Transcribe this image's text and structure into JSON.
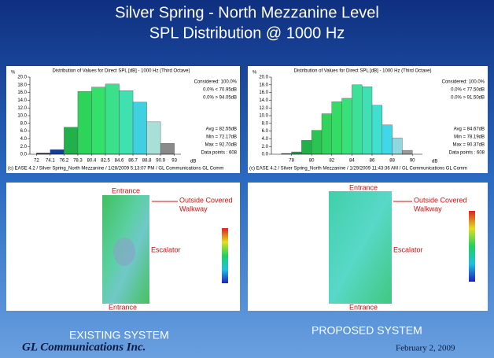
{
  "slide": {
    "title": [
      "Silver Spring - North Mezzanine Level",
      "SPL  Distribution @ 1000 Hz"
    ]
  },
  "chart_data": [
    {
      "type": "histogram",
      "title": "Distribution of Values for Direct SPL [dB] - 1000 Hz (Third Octave)",
      "y_label": "%",
      "x_label": "dB",
      "bins": [
        72,
        74.1,
        76.2,
        78.3,
        80.4,
        82.5,
        84.6,
        86.7,
        88.8,
        90.9,
        93
      ],
      "values": [
        0.3,
        1.2,
        7.0,
        16.3,
        17.4,
        18.2,
        16.5,
        13.5,
        8.4,
        2.8
      ],
      "colors": [
        "#1a1a80",
        "#10409a",
        "#22b04a",
        "#2ed45a",
        "#33e06a",
        "#3be08a",
        "#40e0b0",
        "#40d0e0",
        "#a8e0d8",
        "#8a8a8a"
      ],
      "xlim": [
        71,
        94
      ],
      "xticks": [
        72,
        74.1,
        76.2,
        78.3,
        80.4,
        82.5,
        84.6,
        86.7,
        88.8,
        90.9,
        93
      ],
      "ylim": [
        0,
        20
      ],
      "yticks": [
        {
          "value": 0,
          "label": "0.0"
        },
        {
          "value": 2,
          "label": "2.0"
        },
        {
          "value": 4,
          "label": "4.0"
        },
        {
          "value": 6,
          "label": "6.0"
        },
        {
          "value": 8,
          "label": "8.0"
        },
        {
          "value": 10,
          "label": "10.0"
        },
        {
          "value": 12,
          "label": "12.0"
        },
        {
          "value": 14,
          "label": "14.0"
        },
        {
          "value": 16,
          "label": "16.0"
        },
        {
          "value": 18,
          "label": "18.0"
        },
        {
          "value": 20,
          "label": "20.0"
        }
      ],
      "stats": [
        "Considered: 100.0%",
        "0.0% < 70.95dB",
        "0.0% > 94.05dB",
        "Avg = 82.55dB",
        "Min = 72.17dB",
        "Max = 92.70dB",
        "Data points : 608"
      ],
      "footer": "(c) EASE 4.2 / Silver Spring_North Mezzanine / 1/28/2009 5:13:07 PM / GL Communications GL Comm"
    },
    {
      "type": "histogram",
      "title": "Distribution of Values for Direct SPL [dB] - 1000 Hz (Third Octave)",
      "y_label": "%",
      "x_label": "dB",
      "bins": [
        77,
        78,
        79,
        80,
        81,
        82,
        83,
        84,
        85,
        86,
        87,
        88,
        89,
        90
      ],
      "values": [
        0.2,
        0.6,
        3.6,
        6.2,
        10.5,
        13.6,
        14.5,
        18.0,
        17.5,
        12.7,
        7.6,
        4.2,
        1.0
      ],
      "colors": [
        "#1a8a3a",
        "#1aa040",
        "#22b04a",
        "#2ac452",
        "#30d45a",
        "#34dc66",
        "#38e07a",
        "#3ce096",
        "#40e0b4",
        "#40e0d0",
        "#40d8e8",
        "#90d8e0",
        "#9a9a9a"
      ],
      "xlim": [
        76,
        91
      ],
      "xticks": [
        78,
        80,
        82,
        84,
        86,
        88,
        90
      ],
      "ylim": [
        0,
        20
      ],
      "yticks": [
        {
          "value": 0,
          "label": "0.0"
        },
        {
          "value": 2,
          "label": "2.0"
        },
        {
          "value": 4,
          "label": "4.0"
        },
        {
          "value": 6,
          "label": "6.0"
        },
        {
          "value": 8,
          "label": "8.0"
        },
        {
          "value": 10,
          "label": "10.0"
        },
        {
          "value": 12,
          "label": "12.0"
        },
        {
          "value": 14,
          "label": "14.0"
        },
        {
          "value": 16,
          "label": "16.0"
        },
        {
          "value": 18,
          "label": "18.0"
        },
        {
          "value": 20,
          "label": "20.0"
        }
      ],
      "stats": [
        "Considered: 100.0%",
        "0.0% < 77.50dB",
        "0.0% > 91.50dB",
        "Avg = 84.67dB",
        "Min = 78.19dB",
        "Max = 90.37dB",
        "Data points : 608"
      ],
      "footer": "(c) EASE 4.2 / Silver Spring_North Mezzanine / 1/29/2009 11:43:36 AM / GL Communications GL Comm"
    }
  ],
  "left_plan": {
    "top": "Entrance",
    "side": [
      "Outside Covered",
      "Walkway"
    ],
    "middle": "Escalator",
    "bottom": "Entrance",
    "caption": "EXISTING SYSTEM"
  },
  "right_plan": {
    "top": "Entrance",
    "side": [
      "Outside Covered",
      "Walkway"
    ],
    "middle": "Escalator",
    "bottom": "Entrance",
    "caption": "PROPOSED SYSTEM"
  },
  "footer": {
    "company": "GL Communications Inc.",
    "date": "February 2, 2009"
  }
}
